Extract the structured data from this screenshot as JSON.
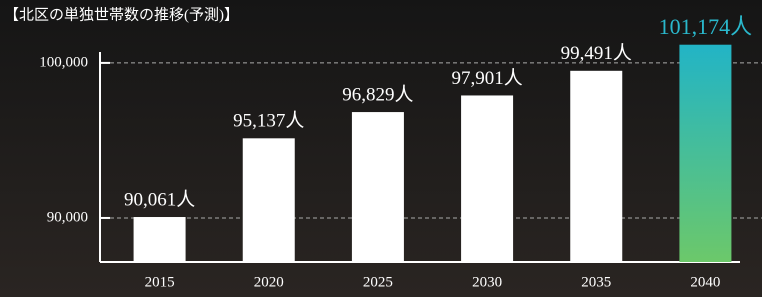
{
  "chart_data": {
    "type": "bar",
    "title": "【北区の単独世帯数の推移(予測)】",
    "categories": [
      "2015",
      "2020",
      "2025",
      "2030",
      "2035",
      "2040"
    ],
    "values": [
      90061,
      95137,
      96829,
      97901,
      99491,
      101174
    ],
    "value_labels": [
      "90,061人",
      "95,137人",
      "96,829人",
      "97,901人",
      "99,491人",
      "101,174人"
    ],
    "colors": [
      "#ffffff",
      "#ffffff",
      "#ffffff",
      "#ffffff",
      "#ffffff",
      "#22b4c6"
    ],
    "gradient_end": "#6cc86a",
    "label_colors": [
      "#ffffff",
      "#ffffff",
      "#ffffff",
      "#ffffff",
      "#ffffff",
      "#2ab8cc"
    ],
    "ylim": [
      87160,
      101800
    ],
    "yticks": [
      {
        "value": 90000,
        "label": "90,000"
      },
      {
        "value": 100000,
        "label": "100,000"
      }
    ],
    "grid": true
  }
}
